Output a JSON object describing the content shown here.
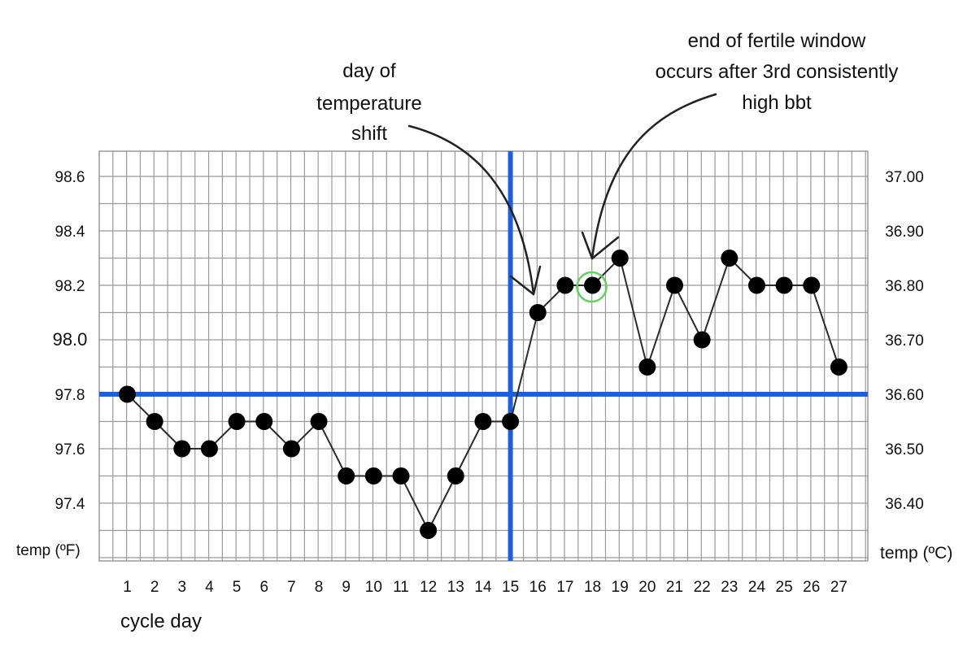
{
  "chart_data": {
    "type": "line",
    "title": "",
    "xlabel": "cycle day",
    "ylabel_left": "temp (ºF)",
    "ylabel_right": "temp (ºC)",
    "x": [
      1,
      2,
      3,
      4,
      5,
      6,
      7,
      8,
      9,
      10,
      11,
      12,
      13,
      14,
      15,
      16,
      17,
      18,
      19,
      20,
      21,
      22,
      23,
      24,
      25,
      26,
      27
    ],
    "x_tick_labels": [
      "1",
      "2",
      "3",
      "4",
      "5",
      "6",
      "7",
      "8",
      "9",
      "10",
      "11",
      "12",
      "13",
      "14",
      "15",
      "16",
      "17",
      "18",
      "19",
      "20",
      "21",
      "22",
      "23",
      "24",
      "25",
      "26",
      "27"
    ],
    "series": [
      {
        "values": [
          97.8,
          97.7,
          97.6,
          97.6,
          97.7,
          97.7,
          97.6,
          97.7,
          97.5,
          97.5,
          97.5,
          97.3,
          97.5,
          97.7,
          97.7,
          98.1,
          98.2,
          98.2,
          98.3,
          97.9,
          98.2,
          98.0,
          98.3,
          98.2,
          98.2,
          98.2,
          97.9
        ]
      }
    ],
    "ylim": [
      97.2,
      98.7
    ],
    "y_ticks_left": [
      {
        "value": 98.6,
        "label": "98.6"
      },
      {
        "value": 98.4,
        "label": "98.4"
      },
      {
        "value": 98.2,
        "label": "98.2"
      },
      {
        "value": 98.0,
        "label": "98.0"
      },
      {
        "value": 97.8,
        "label": "97.8"
      },
      {
        "value": 97.6,
        "label": "97.6"
      },
      {
        "value": 97.4,
        "label": "97.4"
      }
    ],
    "y_ticks_right": [
      {
        "value": 98.6,
        "label": "37.00"
      },
      {
        "value": 98.4,
        "label": "36.90"
      },
      {
        "value": 98.2,
        "label": "36.80"
      },
      {
        "value": 98.0,
        "label": "36.70"
      },
      {
        "value": 97.8,
        "label": "36.60"
      },
      {
        "value": 97.6,
        "label": "36.50"
      },
      {
        "value": 97.4,
        "label": "36.40"
      }
    ],
    "grid": true,
    "reference_lines": [
      {
        "axis": "y",
        "value": 97.8,
        "color": "#1a5fe0"
      },
      {
        "axis": "x",
        "value": 15,
        "color": "#1a5fe0"
      }
    ],
    "highlight": {
      "day": 18,
      "color": "#5ed35e"
    },
    "annotations": [
      {
        "lines": [
          "day of",
          "temperature",
          "shift"
        ],
        "target_day": 16
      },
      {
        "lines": [
          "end of fertile window",
          "occurs after 3rd consistently",
          "high bbt"
        ],
        "target_day": 18
      }
    ],
    "colors": {
      "marker": "#000000",
      "line": "#2b2b2b",
      "grid": "#9a9a9a",
      "reference": "#1a5fe0",
      "highlight": "#5ed35e"
    }
  }
}
